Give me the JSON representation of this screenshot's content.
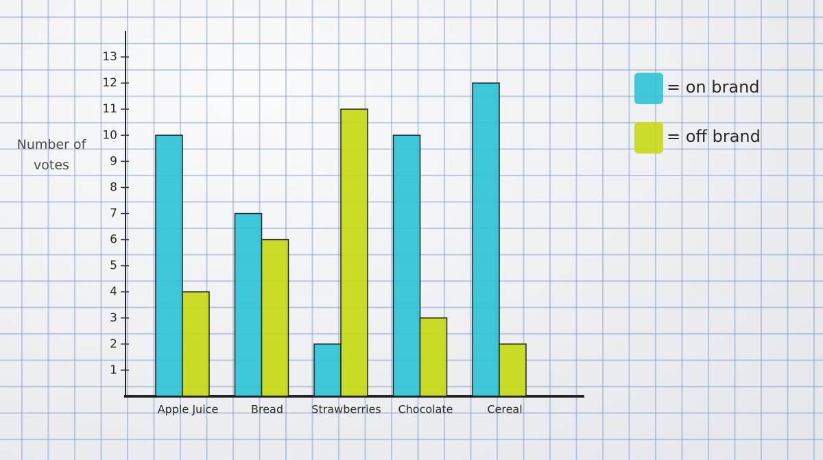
{
  "chart_data": {
    "type": "bar",
    "y_label": "Number of votes",
    "categories": [
      "Apple Juice",
      "Bread",
      "Strawberries",
      "Chocolate",
      "Cereal"
    ],
    "series": [
      {
        "name": "= on brand",
        "color": "#2ec3d6",
        "values": [
          10,
          7,
          2,
          10,
          12
        ]
      },
      {
        "name": "= off brand",
        "color": "#c6da14",
        "values": [
          4,
          6,
          11,
          3,
          2
        ]
      }
    ],
    "ylim": [
      0,
      14
    ],
    "yticks": [
      1,
      2,
      3,
      4,
      5,
      6,
      7,
      8,
      9,
      10,
      11,
      12,
      13
    ],
    "grid": false
  }
}
